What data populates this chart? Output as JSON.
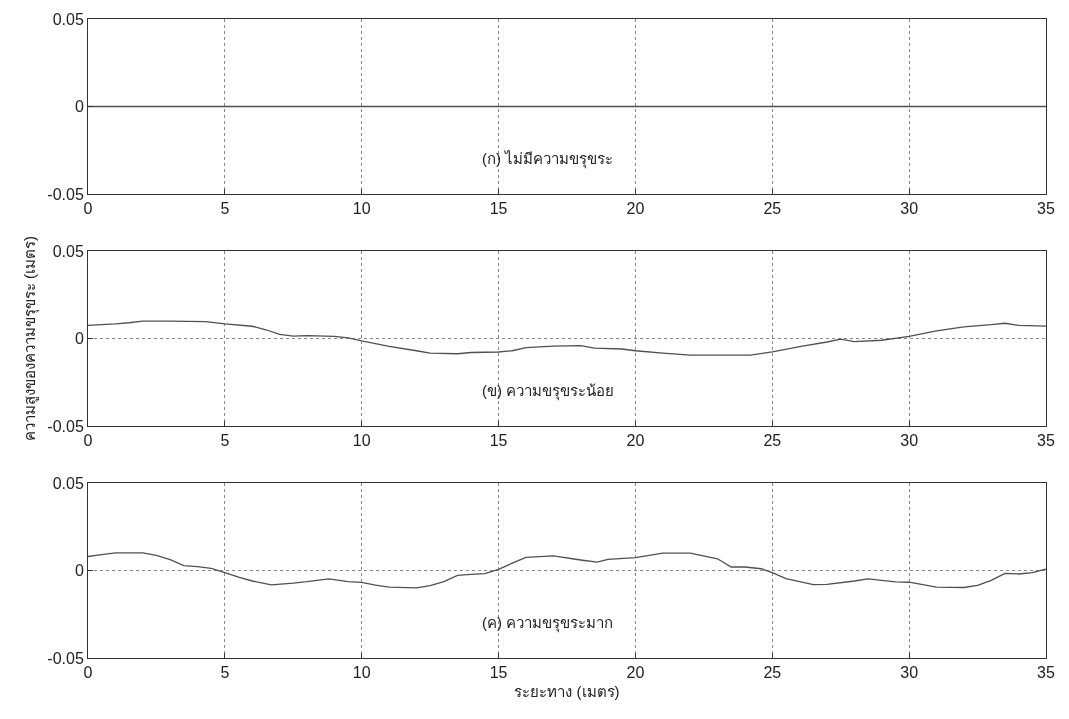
{
  "chart_data": [
    {
      "type": "line",
      "x": [
        0,
        35
      ],
      "series": [
        {
          "color": "#505050",
          "values": [
            0,
            0
          ]
        }
      ],
      "xlim": [
        0,
        35
      ],
      "ylim": [
        -0.05,
        0.05
      ],
      "xticks": [
        0,
        5,
        10,
        15,
        20,
        25,
        30,
        35
      ],
      "yticks": [
        -0.05,
        0,
        0.05
      ],
      "grid": true,
      "line_style": "solid",
      "annotations": [
        "(ก) ไม่มีความขรุขระ"
      ]
    },
    {
      "type": "line",
      "x": [
        0,
        1,
        1.5,
        2,
        3,
        4.3,
        5,
        6,
        6.5,
        7,
        7.5,
        8,
        9,
        9.5,
        10,
        11,
        12,
        12.5,
        13.5,
        14,
        15,
        15.5,
        16,
        17,
        18,
        18.5,
        19.5,
        20,
        21,
        22,
        23,
        24.2,
        25,
        26,
        27,
        27.5,
        28,
        29,
        30,
        31,
        32,
        33,
        33.5,
        34,
        35
      ],
      "series": [
        {
          "color": "#505050",
          "values": [
            0.0075,
            0.0083,
            0.009,
            0.0099,
            0.0099,
            0.0097,
            0.0083,
            0.007,
            0.005,
            0.0024,
            0.0014,
            0.0016,
            0.0012,
            0.0004,
            -0.0014,
            -0.0045,
            -0.007,
            -0.0083,
            -0.0087,
            -0.008,
            -0.0077,
            -0.007,
            -0.0052,
            -0.0043,
            -0.0041,
            -0.0055,
            -0.006,
            -0.007,
            -0.0083,
            -0.0095,
            -0.0095,
            -0.0095,
            -0.0077,
            -0.0047,
            -0.002,
            -0.0004,
            -0.0018,
            -0.001,
            0.0012,
            0.0043,
            0.0067,
            0.0079,
            0.0087,
            0.0075,
            0.0071
          ]
        }
      ],
      "xlim": [
        0,
        35
      ],
      "ylim": [
        -0.05,
        0.05
      ],
      "xticks": [
        0,
        5,
        10,
        15,
        20,
        25,
        30,
        35
      ],
      "yticks": [
        -0.05,
        0,
        0.05
      ],
      "grid": true,
      "line_style": "solid",
      "ylabel": "ความสูงของความขรุขระ (เมตร)",
      "annotations": [
        "(ข) ความขรุขระน้อย"
      ]
    },
    {
      "type": "line",
      "x": [
        0,
        0.5,
        1,
        2,
        2.5,
        3,
        3.5,
        4,
        4.5,
        5,
        5.5,
        6,
        6.7,
        7.5,
        8,
        8.8,
        9.5,
        10,
        10.5,
        11,
        12,
        12.5,
        13,
        13.5,
        14,
        14.5,
        15,
        15.5,
        16,
        17,
        18,
        18.6,
        19,
        20,
        21,
        22,
        23,
        23.5,
        24,
        24.6,
        25,
        25.5,
        26.5,
        27,
        28,
        28.5,
        29.5,
        30,
        31,
        32,
        32.5,
        33,
        33.5,
        34,
        34.5,
        35
      ],
      "series": [
        {
          "color": "#505050",
          "values": [
            0.008,
            0.0091,
            0.0101,
            0.0101,
            0.0087,
            0.0062,
            0.0028,
            0.0022,
            0.0012,
            -0.0012,
            -0.0038,
            -0.006,
            -0.0082,
            -0.0072,
            -0.0064,
            -0.0048,
            -0.0064,
            -0.0068,
            -0.0083,
            -0.0095,
            -0.0099,
            -0.0087,
            -0.0064,
            -0.0028,
            -0.0022,
            -0.0018,
            0.0006,
            0.0042,
            0.0075,
            0.0083,
            0.006,
            0.0048,
            0.0063,
            0.0073,
            0.0099,
            0.0099,
            0.0067,
            0.002,
            0.002,
            0.001,
            -0.0012,
            -0.0046,
            -0.0081,
            -0.0079,
            -0.006,
            -0.0048,
            -0.0065,
            -0.0067,
            -0.0095,
            -0.0097,
            -0.0085,
            -0.0056,
            -0.0016,
            -0.002,
            -0.0012,
            0.0008
          ]
        }
      ],
      "xlim": [
        0,
        35
      ],
      "ylim": [
        -0.05,
        0.05
      ],
      "xticks": [
        0,
        5,
        10,
        15,
        20,
        25,
        30,
        35
      ],
      "yticks": [
        -0.05,
        0,
        0.05
      ],
      "grid": true,
      "line_style": "solid",
      "xlabel": "ระยะทาง (เมตร)",
      "annotations": [
        "(ค) ความขรุขระมาก"
      ]
    }
  ]
}
